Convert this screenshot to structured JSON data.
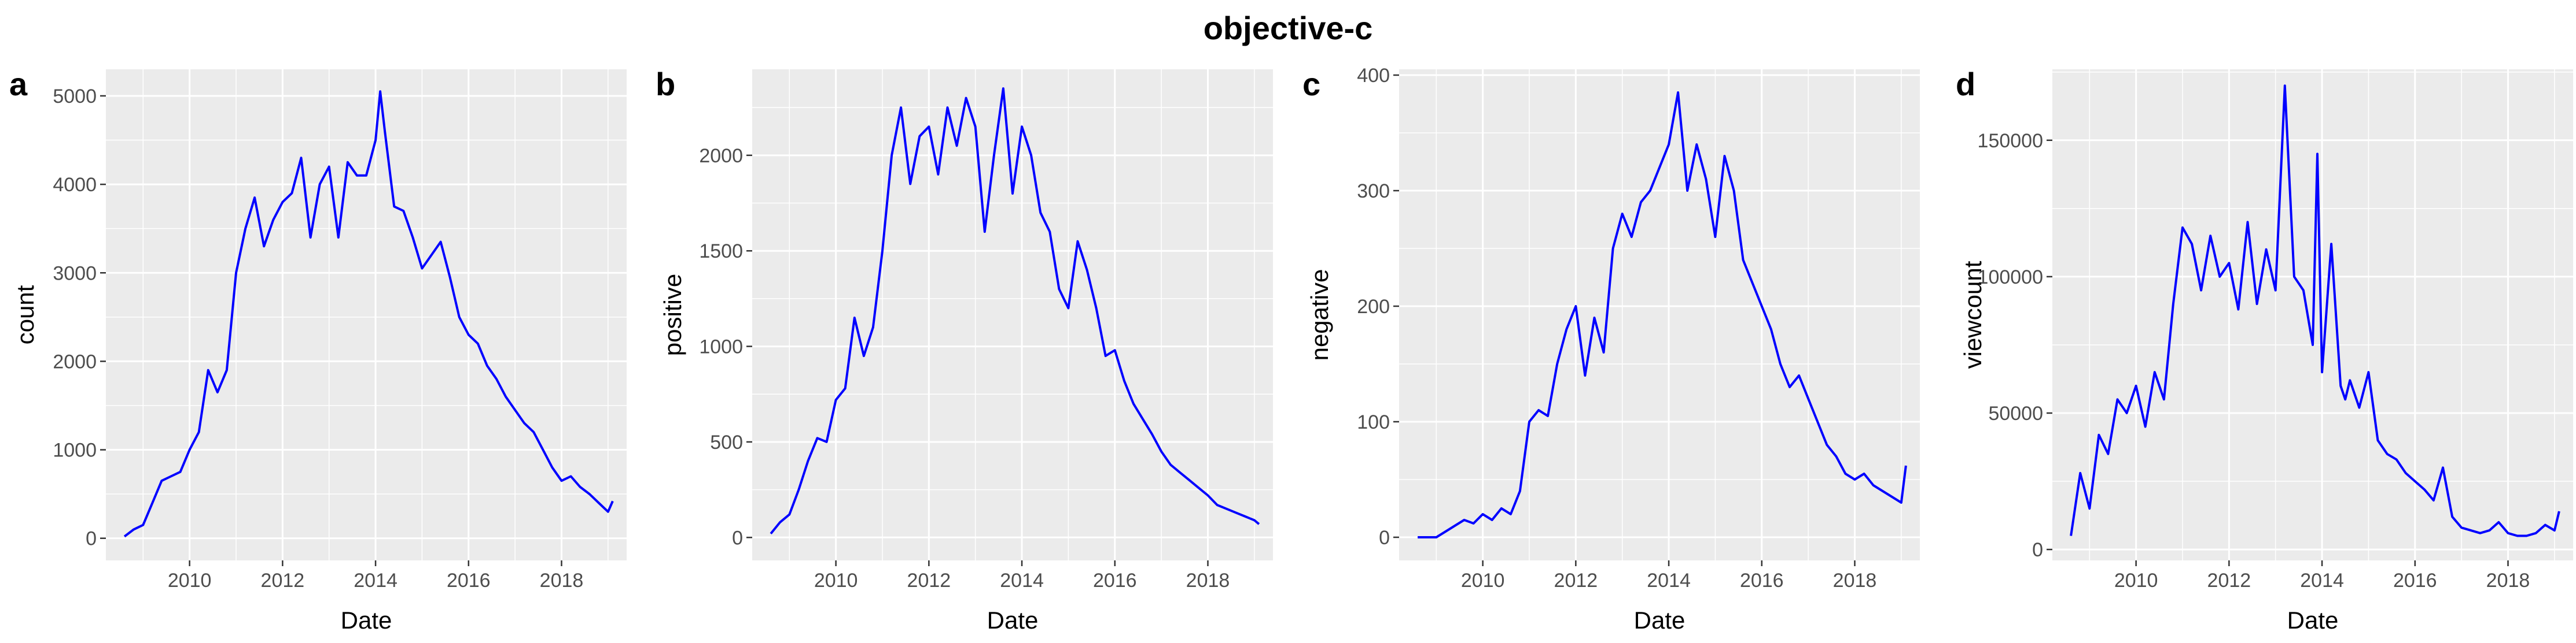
{
  "title": "objective-c",
  "colors": {
    "line": "#0000ff",
    "panel": "#ebebeb",
    "grid": "#ffffff",
    "tick_text": "#4d4d4d"
  },
  "chart_data": [
    {
      "panel": "a",
      "type": "line",
      "title": "objective-c",
      "xlabel": "Date",
      "ylabel": "count",
      "xlim": [
        2008.2,
        2019.4
      ],
      "ylim": [
        -250,
        5300
      ],
      "xticks": [
        2010,
        2012,
        2014,
        2016,
        2018
      ],
      "yticks": [
        0,
        1000,
        2000,
        3000,
        4000,
        5000
      ],
      "x": [
        2008.6,
        2008.8,
        2009.0,
        2009.2,
        2009.4,
        2009.6,
        2009.8,
        2010.0,
        2010.2,
        2010.4,
        2010.6,
        2010.8,
        2011.0,
        2011.2,
        2011.4,
        2011.6,
        2011.8,
        2012.0,
        2012.2,
        2012.4,
        2012.6,
        2012.8,
        2013.0,
        2013.2,
        2013.4,
        2013.6,
        2013.8,
        2014.0,
        2014.1,
        2014.2,
        2014.4,
        2014.6,
        2014.8,
        2015.0,
        2015.2,
        2015.4,
        2015.6,
        2015.8,
        2016.0,
        2016.2,
        2016.4,
        2016.6,
        2016.8,
        2017.0,
        2017.2,
        2017.4,
        2017.6,
        2017.8,
        2018.0,
        2018.2,
        2018.4,
        2018.6,
        2018.8,
        2019.0,
        2019.1
      ],
      "values": [
        20,
        100,
        150,
        400,
        650,
        700,
        750,
        1000,
        1200,
        1900,
        1650,
        1900,
        3000,
        3500,
        3850,
        3300,
        3600,
        3800,
        3900,
        4300,
        3400,
        4000,
        4200,
        3400,
        4250,
        4100,
        4100,
        4500,
        5050,
        4600,
        3750,
        3700,
        3400,
        3050,
        3200,
        3350,
        2950,
        2500,
        2300,
        2200,
        1950,
        1800,
        1600,
        1450,
        1300,
        1200,
        1000,
        800,
        650,
        700,
        580,
        500,
        400,
        300,
        420
      ]
    },
    {
      "panel": "b",
      "type": "line",
      "xlabel": "Date",
      "ylabel": "positive",
      "xlim": [
        2008.2,
        2019.4
      ],
      "ylim": [
        -120,
        2450
      ],
      "xticks": [
        2010,
        2012,
        2014,
        2016,
        2018
      ],
      "yticks": [
        0,
        500,
        1000,
        1500,
        2000
      ],
      "x": [
        2008.6,
        2008.8,
        2009.0,
        2009.2,
        2009.4,
        2009.6,
        2009.8,
        2010.0,
        2010.2,
        2010.4,
        2010.6,
        2010.8,
        2011.0,
        2011.2,
        2011.4,
        2011.6,
        2011.8,
        2012.0,
        2012.2,
        2012.4,
        2012.6,
        2012.8,
        2013.0,
        2013.2,
        2013.4,
        2013.6,
        2013.8,
        2014.0,
        2014.2,
        2014.4,
        2014.6,
        2014.8,
        2015.0,
        2015.2,
        2015.4,
        2015.6,
        2015.8,
        2016.0,
        2016.2,
        2016.4,
        2016.6,
        2016.8,
        2017.0,
        2017.2,
        2017.4,
        2017.6,
        2017.8,
        2018.0,
        2018.2,
        2018.4,
        2018.6,
        2018.8,
        2019.0,
        2019.1
      ],
      "values": [
        20,
        80,
        120,
        250,
        400,
        520,
        500,
        720,
        780,
        1150,
        950,
        1100,
        1500,
        2000,
        2250,
        1850,
        2100,
        2150,
        1900,
        2250,
        2050,
        2300,
        2150,
        1600,
        2000,
        2350,
        1800,
        2150,
        2000,
        1700,
        1600,
        1300,
        1200,
        1550,
        1400,
        1200,
        950,
        980,
        820,
        700,
        620,
        540,
        450,
        380,
        340,
        300,
        260,
        220,
        170,
        150,
        130,
        110,
        90,
        70
      ]
    },
    {
      "panel": "c",
      "type": "line",
      "xlabel": "Date",
      "ylabel": "negative",
      "xlim": [
        2008.2,
        2019.4
      ],
      "ylim": [
        -20,
        405
      ],
      "xticks": [
        2010,
        2012,
        2014,
        2016,
        2018
      ],
      "yticks": [
        0,
        100,
        200,
        300,
        400
      ],
      "x": [
        2008.6,
        2008.8,
        2009.0,
        2009.2,
        2009.4,
        2009.6,
        2009.8,
        2010.0,
        2010.2,
        2010.4,
        2010.6,
        2010.8,
        2011.0,
        2011.2,
        2011.4,
        2011.6,
        2011.8,
        2012.0,
        2012.2,
        2012.4,
        2012.6,
        2012.8,
        2013.0,
        2013.2,
        2013.4,
        2013.6,
        2013.8,
        2014.0,
        2014.2,
        2014.4,
        2014.6,
        2014.8,
        2015.0,
        2015.2,
        2015.4,
        2015.6,
        2015.8,
        2016.0,
        2016.2,
        2016.4,
        2016.6,
        2016.8,
        2017.0,
        2017.2,
        2017.4,
        2017.6,
        2017.8,
        2018.0,
        2018.2,
        2018.4,
        2018.6,
        2018.8,
        2019.0,
        2019.1
      ],
      "values": [
        0,
        0,
        0,
        5,
        10,
        15,
        12,
        20,
        15,
        25,
        20,
        40,
        100,
        110,
        105,
        150,
        180,
        200,
        140,
        190,
        160,
        250,
        280,
        260,
        290,
        300,
        320,
        340,
        385,
        300,
        340,
        310,
        260,
        330,
        300,
        240,
        220,
        200,
        180,
        150,
        130,
        140,
        120,
        100,
        80,
        70,
        55,
        50,
        55,
        45,
        40,
        35,
        30,
        62
      ]
    },
    {
      "panel": "d",
      "type": "line",
      "xlabel": "Date",
      "ylabel": "viewcount",
      "xlim": [
        2008.2,
        2019.4
      ],
      "ylim": [
        -4000,
        176000
      ],
      "xticks": [
        2010,
        2012,
        2014,
        2016,
        2018
      ],
      "yticks": [
        0,
        50000,
        100000,
        150000
      ],
      "x": [
        2008.6,
        2008.8,
        2009.0,
        2009.2,
        2009.4,
        2009.6,
        2009.8,
        2010.0,
        2010.2,
        2010.4,
        2010.6,
        2010.8,
        2011.0,
        2011.2,
        2011.4,
        2011.6,
        2011.8,
        2012.0,
        2012.2,
        2012.4,
        2012.6,
        2012.8,
        2013.0,
        2013.2,
        2013.4,
        2013.6,
        2013.8,
        2013.9,
        2014.0,
        2014.2,
        2014.4,
        2014.5,
        2014.6,
        2014.8,
        2015.0,
        2015.2,
        2015.4,
        2015.6,
        2015.8,
        2016.0,
        2016.2,
        2016.4,
        2016.6,
        2016.8,
        2017.0,
        2017.2,
        2017.4,
        2017.6,
        2017.8,
        2018.0,
        2018.2,
        2018.4,
        2018.6,
        2018.8,
        2019.0,
        2019.1
      ],
      "values": [
        5000,
        28000,
        15000,
        42000,
        35000,
        55000,
        50000,
        60000,
        45000,
        65000,
        55000,
        90000,
        118000,
        112000,
        95000,
        115000,
        100000,
        105000,
        88000,
        120000,
        90000,
        110000,
        95000,
        170000,
        100000,
        95000,
        75000,
        145000,
        65000,
        112000,
        60000,
        55000,
        62000,
        52000,
        65000,
        40000,
        35000,
        33000,
        28000,
        25000,
        22000,
        18000,
        30000,
        12000,
        8000,
        7000,
        6000,
        7000,
        10000,
        6000,
        5000,
        5000,
        6000,
        9000,
        7000,
        14000
      ]
    }
  ]
}
